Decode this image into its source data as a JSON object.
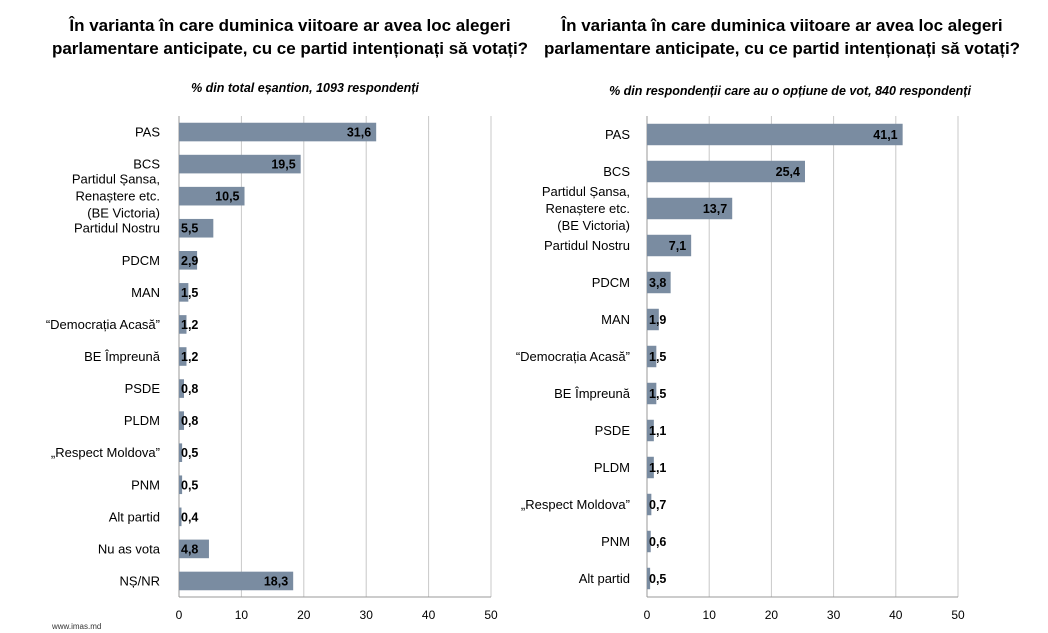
{
  "footer": "www.imas.md",
  "chart_data": [
    {
      "type": "bar",
      "orientation": "horizontal",
      "title": "În varianta în care duminica viitoare ar avea loc alegeri parlamentare anticipate, cu ce partid intenționați să votați?",
      "subtitle": "% din total eșantion, 1093 respondenți",
      "xlim": [
        0,
        50
      ],
      "xticks": [
        0,
        10,
        20,
        30,
        40,
        50
      ],
      "grid": true,
      "bar_color": "#7a8ca1",
      "categories": [
        "PAS",
        "BCS",
        "Partidul Șansa, Renaștere etc. (BE Victoria)",
        "Partidul Nostru",
        "PDCM",
        "MAN",
        "“Democrația Acasă”",
        "BE Împreună",
        "PSDE",
        "PLDM",
        "„Respect Moldova”",
        "PNM",
        "Alt partid",
        "Nu as vota",
        "NȘ/NR"
      ],
      "values": [
        31.6,
        19.5,
        10.5,
        5.5,
        2.9,
        1.5,
        1.2,
        1.2,
        0.8,
        0.8,
        0.5,
        0.5,
        0.4,
        4.8,
        18.3
      ],
      "value_labels": [
        "31,6",
        "19,5",
        "10,5",
        "5,5",
        "2,9",
        "1,5",
        "1,2",
        "1,2",
        "0,8",
        "0,8",
        "0,5",
        "0,5",
        "0,4",
        "4,8",
        "18,3"
      ]
    },
    {
      "type": "bar",
      "orientation": "horizontal",
      "title": "În varianta în care duminica viitoare ar avea loc alegeri parlamentare anticipate, cu ce partid intenționați să votați?",
      "subtitle": "% din respondenții care au o opțiune de vot, 840 respondenți",
      "xlim": [
        0,
        50
      ],
      "xticks": [
        0,
        10,
        20,
        30,
        40,
        50
      ],
      "grid": true,
      "bar_color": "#7a8ca1",
      "categories": [
        "PAS",
        "BCS",
        "Partidul Șansa, Renaștere etc. (BE Victoria)",
        "Partidul Nostru",
        "PDCM",
        "MAN",
        "“Democrația Acasă”",
        "BE Împreună",
        "PSDE",
        "PLDM",
        "„Respect Moldova”",
        "PNM",
        "Alt partid"
      ],
      "values": [
        41.1,
        25.4,
        13.7,
        7.1,
        3.8,
        1.9,
        1.5,
        1.5,
        1.1,
        1.1,
        0.7,
        0.6,
        0.5
      ],
      "value_labels": [
        "41,1",
        "25,4",
        "13,7",
        "7,1",
        "3,8",
        "1,9",
        "1,5",
        "1,5",
        "1,1",
        "1,1",
        "0,7",
        "0,6",
        "0,5"
      ]
    }
  ]
}
